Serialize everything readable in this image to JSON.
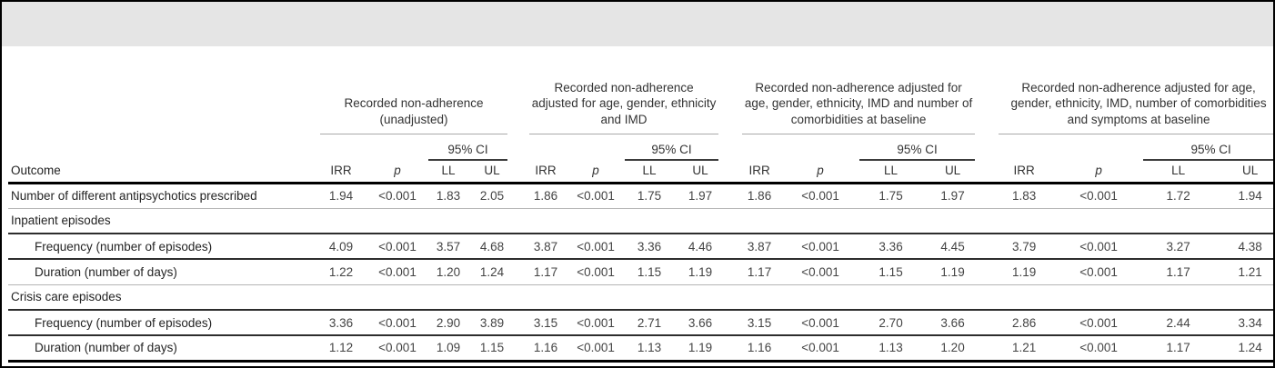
{
  "colors": {
    "top_band_background": "#e5e5e5",
    "light_rule": "#b5b5b5",
    "dark_rule": "#2d2d2d",
    "heavy_rule": "#000000"
  },
  "table": {
    "outcome_header": "Outcome",
    "ci_label": "95% CI",
    "col_labels": {
      "irr": "IRR",
      "p": "p",
      "ll": "LL",
      "ul": "UL"
    },
    "groups": [
      {
        "title": "Recorded non-adherence (unadjusted)"
      },
      {
        "title": "Recorded non-adherence adjusted for age, gender, ethnicity and IMD"
      },
      {
        "title": "Recorded non-adherence adjusted for age, gender, ethnicity, IMD and number of comorbidities at baseline"
      },
      {
        "title": "Recorded non-adherence adjusted for age, gender, ethnicity, IMD, number of comorbidities and symptoms at baseline"
      }
    ],
    "rows": [
      {
        "type": "data",
        "label": "Number of different antipsychotics prescribed",
        "indent": false,
        "rule": "light",
        "values": [
          [
            "1.94",
            "<0.001",
            "1.83",
            "2.05"
          ],
          [
            "1.86",
            "<0.001",
            "1.75",
            "1.97"
          ],
          [
            "1.86",
            "<0.001",
            "1.75",
            "1.97"
          ],
          [
            "1.83",
            "<0.001",
            "1.72",
            "1.94"
          ]
        ]
      },
      {
        "type": "section",
        "label": "Inpatient episodes",
        "rule": "dark"
      },
      {
        "type": "data",
        "label": "Frequency (number of episodes)",
        "indent": true,
        "rule": "dark",
        "values": [
          [
            "4.09",
            "<0.001",
            "3.57",
            "4.68"
          ],
          [
            "3.87",
            "<0.001",
            "3.36",
            "4.46"
          ],
          [
            "3.87",
            "<0.001",
            "3.36",
            "4.45"
          ],
          [
            "3.79",
            "<0.001",
            "3.27",
            "4.38"
          ]
        ]
      },
      {
        "type": "data",
        "label": "Duration (number of days)",
        "indent": true,
        "rule": "light",
        "values": [
          [
            "1.22",
            "<0.001",
            "1.20",
            "1.24"
          ],
          [
            "1.17",
            "<0.001",
            "1.15",
            "1.19"
          ],
          [
            "1.17",
            "<0.001",
            "1.15",
            "1.19"
          ],
          [
            "1.19",
            "<0.001",
            "1.17",
            "1.21"
          ]
        ]
      },
      {
        "type": "section",
        "label": "Crisis care episodes",
        "rule": "dark"
      },
      {
        "type": "data",
        "label": "Frequency (number of episodes)",
        "indent": true,
        "rule": "dark",
        "values": [
          [
            "3.36",
            "<0.001",
            "2.90",
            "3.89"
          ],
          [
            "3.15",
            "<0.001",
            "2.71",
            "3.66"
          ],
          [
            "3.15",
            "<0.001",
            "2.70",
            "3.66"
          ],
          [
            "2.86",
            "<0.001",
            "2.44",
            "3.34"
          ]
        ]
      },
      {
        "type": "data",
        "label": "Duration (number of days)",
        "indent": true,
        "rule": "end",
        "values": [
          [
            "1.12",
            "<0.001",
            "1.09",
            "1.15"
          ],
          [
            "1.16",
            "<0.001",
            "1.13",
            "1.19"
          ],
          [
            "1.16",
            "<0.001",
            "1.13",
            "1.20"
          ],
          [
            "1.21",
            "<0.001",
            "1.17",
            "1.24"
          ]
        ]
      }
    ]
  }
}
